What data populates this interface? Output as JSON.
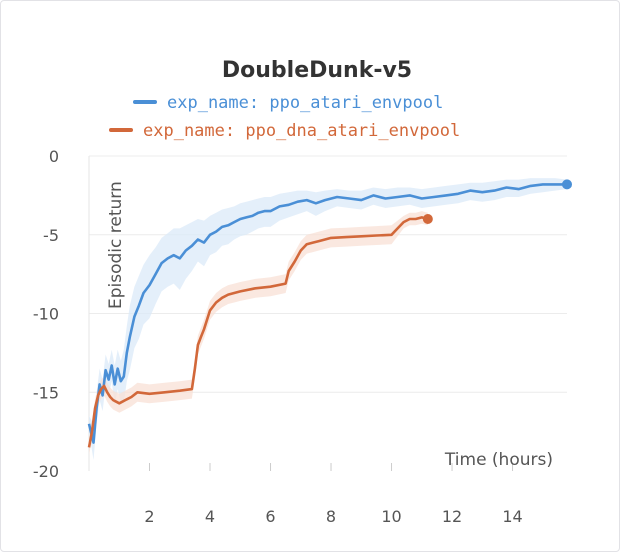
{
  "chart_data": {
    "type": "line",
    "title": "DoubleDunk-v5",
    "xlabel": "Time (hours)",
    "ylabel": "Episodic return",
    "xlim": [
      0,
      15.8
    ],
    "ylim": [
      -20,
      0
    ],
    "xticks": [
      2,
      4,
      6,
      8,
      10,
      12,
      14
    ],
    "yticks": [
      0,
      -5,
      -10,
      -15,
      -20
    ],
    "grid": true,
    "legend": "top-center",
    "series": [
      {
        "name": "exp_name: ppo_atari_envpool",
        "color": "#4a8fd6",
        "band_color": "#dbe9f8",
        "x": [
          0.0,
          0.15,
          0.25,
          0.35,
          0.45,
          0.55,
          0.65,
          0.75,
          0.85,
          0.95,
          1.05,
          1.15,
          1.25,
          1.35,
          1.5,
          1.65,
          1.8,
          2.0,
          2.2,
          2.4,
          2.6,
          2.8,
          3.0,
          3.2,
          3.4,
          3.6,
          3.8,
          4.0,
          4.2,
          4.4,
          4.6,
          4.8,
          5.0,
          5.2,
          5.4,
          5.6,
          5.8,
          6.0,
          6.3,
          6.6,
          6.9,
          7.2,
          7.5,
          7.8,
          8.2,
          8.6,
          9.0,
          9.4,
          9.8,
          10.2,
          10.6,
          11.0,
          11.4,
          11.8,
          12.2,
          12.6,
          13.0,
          13.4,
          13.8,
          14.2,
          14.6,
          15.0,
          15.4,
          15.8
        ],
        "y": [
          -17.0,
          -18.2,
          -16.0,
          -14.5,
          -15.2,
          -13.6,
          -14.2,
          -13.3,
          -14.5,
          -13.5,
          -14.3,
          -14.0,
          -12.5,
          -11.5,
          -10.2,
          -9.5,
          -8.7,
          -8.2,
          -7.5,
          -6.8,
          -6.5,
          -6.3,
          -6.5,
          -6.0,
          -5.7,
          -5.3,
          -5.5,
          -5.0,
          -4.8,
          -4.5,
          -4.4,
          -4.2,
          -4.0,
          -3.9,
          -3.8,
          -3.6,
          -3.5,
          -3.5,
          -3.2,
          -3.1,
          -2.9,
          -2.8,
          -3.0,
          -2.8,
          -2.6,
          -2.7,
          -2.8,
          -2.5,
          -2.7,
          -2.6,
          -2.5,
          -2.7,
          -2.6,
          -2.5,
          -2.4,
          -2.2,
          -2.3,
          -2.2,
          -2.0,
          -2.1,
          -1.9,
          -1.8,
          -1.8,
          -1.8
        ],
        "upper": [
          -16.5,
          -17.0,
          -15.0,
          -13.5,
          -14.2,
          -12.6,
          -13.2,
          -12.3,
          -13.3,
          -12.3,
          -13.0,
          -12.3,
          -10.8,
          -9.5,
          -8.3,
          -7.6,
          -6.9,
          -6.3,
          -5.8,
          -5.2,
          -4.9,
          -4.6,
          -4.6,
          -4.4,
          -4.2,
          -4.0,
          -4.1,
          -3.8,
          -3.6,
          -3.4,
          -3.3,
          -3.2,
          -3.0,
          -2.9,
          -2.8,
          -2.7,
          -2.6,
          -2.6,
          -2.4,
          -2.3,
          -2.2,
          -2.2,
          -2.3,
          -2.2,
          -2.1,
          -2.2,
          -2.2,
          -2.0,
          -2.1,
          -2.0,
          -2.0,
          -2.1,
          -2.0,
          -1.9,
          -1.8,
          -1.7,
          -1.7,
          -1.6,
          -1.5,
          -1.5,
          -1.4,
          -1.4,
          -1.4,
          -1.5
        ],
        "lower": [
          -17.5,
          -19.3,
          -17.0,
          -15.5,
          -16.2,
          -14.6,
          -15.2,
          -14.3,
          -15.8,
          -14.8,
          -15.6,
          -15.7,
          -14.3,
          -13.6,
          -12.2,
          -11.6,
          -10.7,
          -10.3,
          -9.4,
          -8.6,
          -8.3,
          -8.1,
          -8.5,
          -7.8,
          -7.3,
          -6.7,
          -7.0,
          -6.3,
          -6.1,
          -5.7,
          -5.6,
          -5.3,
          -5.1,
          -5.0,
          -4.8,
          -4.6,
          -4.5,
          -4.5,
          -4.1,
          -3.9,
          -3.7,
          -3.5,
          -3.8,
          -3.5,
          -3.2,
          -3.3,
          -3.4,
          -3.1,
          -3.3,
          -3.2,
          -3.1,
          -3.3,
          -3.2,
          -3.1,
          -3.0,
          -2.8,
          -2.9,
          -2.8,
          -2.6,
          -2.6,
          -2.4,
          -2.3,
          -2.2,
          -2.1
        ]
      },
      {
        "name": "exp_name: ppo_dna_atari_envpool",
        "color": "#d2683a",
        "band_color": "#f8e0d5",
        "x": [
          0.0,
          0.1,
          0.2,
          0.3,
          0.4,
          0.5,
          0.6,
          0.7,
          0.8,
          0.9,
          1.0,
          1.2,
          1.4,
          1.6,
          2.0,
          2.5,
          3.0,
          3.4,
          3.5,
          3.6,
          3.7,
          3.8,
          4.0,
          4.2,
          4.4,
          4.6,
          4.8,
          5.0,
          5.5,
          6.0,
          6.5,
          6.6,
          6.8,
          7.0,
          7.2,
          7.4,
          7.6,
          7.8,
          8.0,
          8.5,
          9.0,
          9.5,
          10.0,
          10.2,
          10.4,
          10.6,
          10.8,
          11.0,
          11.2
        ],
        "y": [
          -18.5,
          -17.5,
          -16.0,
          -15.2,
          -14.8,
          -14.6,
          -15.0,
          -15.3,
          -15.5,
          -15.6,
          -15.7,
          -15.5,
          -15.3,
          -15.0,
          -15.1,
          -15.0,
          -14.9,
          -14.8,
          -13.5,
          -12.0,
          -11.5,
          -11.0,
          -9.8,
          -9.3,
          -9.0,
          -8.8,
          -8.7,
          -8.6,
          -8.4,
          -8.3,
          -8.1,
          -7.3,
          -6.7,
          -6.0,
          -5.6,
          -5.5,
          -5.4,
          -5.3,
          -5.2,
          -5.15,
          -5.1,
          -5.05,
          -5.0,
          -4.6,
          -4.2,
          -4.0,
          -4.0,
          -3.9,
          -4.0
        ],
        "upper": [
          -18.0,
          -17.0,
          -15.4,
          -14.6,
          -14.2,
          -14.0,
          -14.4,
          -14.7,
          -14.9,
          -15.0,
          -15.1,
          -14.9,
          -14.7,
          -14.4,
          -14.5,
          -14.4,
          -14.3,
          -14.2,
          -12.9,
          -11.4,
          -10.9,
          -10.4,
          -9.2,
          -8.7,
          -8.4,
          -8.2,
          -8.1,
          -8.0,
          -7.8,
          -7.7,
          -7.5,
          -6.7,
          -6.1,
          -5.4,
          -5.0,
          -4.9,
          -4.8,
          -4.7,
          -4.6,
          -4.55,
          -4.5,
          -4.45,
          -4.4,
          -4.1,
          -3.8,
          -3.6,
          -3.6,
          -3.5,
          -3.6
        ],
        "lower": [
          -19.0,
          -18.0,
          -16.6,
          -15.8,
          -15.4,
          -15.2,
          -15.6,
          -15.9,
          -16.1,
          -16.2,
          -16.3,
          -16.1,
          -15.9,
          -15.6,
          -15.7,
          -15.6,
          -15.5,
          -15.4,
          -14.1,
          -12.6,
          -12.1,
          -11.6,
          -10.4,
          -9.9,
          -9.6,
          -9.4,
          -9.3,
          -9.2,
          -9.0,
          -8.9,
          -8.7,
          -7.9,
          -7.3,
          -6.6,
          -6.2,
          -6.1,
          -6.0,
          -5.9,
          -5.8,
          -5.75,
          -5.7,
          -5.65,
          -5.6,
          -5.1,
          -4.6,
          -4.4,
          -4.4,
          -4.3,
          -4.4
        ]
      }
    ]
  }
}
